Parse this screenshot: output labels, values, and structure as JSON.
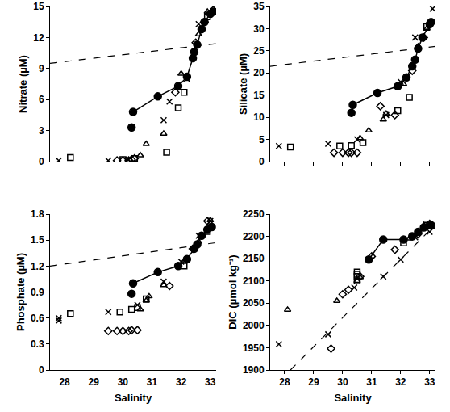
{
  "chart_data": [
    {
      "type": "scatter",
      "ylabel": "Nitrate (µM)",
      "tick_labels": "y",
      "xlim": [
        27.5,
        33.2
      ],
      "xticks": [
        28,
        29,
        30,
        31,
        32,
        33
      ],
      "ylim": [
        0,
        15
      ],
      "yticks": [
        0,
        3,
        6,
        9,
        12,
        15
      ],
      "series": [
        {
          "marker": "none",
          "line_style": "dashed",
          "color": "#000000",
          "x": [
            27.5,
            33.2
          ],
          "values": [
            9.5,
            11.4
          ]
        },
        {
          "marker": "x",
          "color": "#000000",
          "x": [
            27.8,
            29.5,
            30.2,
            31.4,
            31.6,
            32.2,
            32.6,
            33.1
          ],
          "values": [
            0.1,
            0.1,
            0.2,
            4.0,
            5.8,
            8.0,
            13.3,
            15.0
          ]
        },
        {
          "marker": "square-open",
          "color": "#000000",
          "x": [
            28.2,
            30.0,
            30.4,
            31.5,
            31.9,
            32.1,
            32.9
          ],
          "values": [
            0.4,
            0.2,
            0.3,
            0.9,
            5.2,
            6.7,
            14.0
          ]
        },
        {
          "marker": "triangle-up-open",
          "color": "#000000",
          "x": [
            30.6,
            30.8,
            31.4,
            32.0,
            32.6,
            32.9
          ],
          "values": [
            0.6,
            1.7,
            2.7,
            8.5,
            12.3,
            14.5
          ]
        },
        {
          "marker": "diamond-open",
          "color": "#000000",
          "x": [
            29.8,
            30.0,
            30.2,
            30.3,
            30.4,
            31.8,
            32.5,
            32.8
          ],
          "values": [
            0.1,
            0.1,
            0.1,
            0.2,
            0.3,
            6.7,
            11.5,
            13.5
          ]
        },
        {
          "marker": "circle",
          "color": "#000000",
          "x": [
            30.3
          ],
          "values": [
            3.3
          ]
        },
        {
          "marker": "circle",
          "line_style": "solid",
          "color": "#000000",
          "x": [
            30.35,
            31.2,
            31.9,
            32.2,
            32.4,
            32.45,
            32.55,
            32.7,
            32.8,
            33.0,
            33.1
          ],
          "values": [
            4.8,
            6.3,
            7.3,
            8.2,
            10.0,
            10.6,
            11.3,
            12.8,
            13.5,
            14.3,
            14.5
          ]
        }
      ]
    },
    {
      "type": "scatter",
      "ylabel": "Silicate (µM)",
      "tick_labels": "y",
      "xlim": [
        27.5,
        33.2
      ],
      "xticks": [
        28,
        29,
        30,
        31,
        32,
        33
      ],
      "ylim": [
        0,
        35
      ],
      "yticks": [
        0,
        5,
        10,
        15,
        20,
        25,
        30,
        35
      ],
      "series": [
        {
          "marker": "none",
          "line_style": "dashed",
          "color": "#000000",
          "x": [
            27.5,
            33.2
          ],
          "values": [
            21.5,
            26.0
          ]
        },
        {
          "marker": "x",
          "color": "#000000",
          "x": [
            27.8,
            29.5,
            30.5,
            31.5,
            32.0,
            32.5,
            33.1
          ],
          "values": [
            3.5,
            4.0,
            5.0,
            10.5,
            18.0,
            28.0,
            34.5
          ]
        },
        {
          "marker": "square-open",
          "color": "#000000",
          "x": [
            28.2,
            29.9,
            30.3,
            30.7,
            31.9,
            32.3,
            32.9
          ],
          "values": [
            3.3,
            3.5,
            3.6,
            4.3,
            11.5,
            14.5,
            30.5
          ]
        },
        {
          "marker": "triangle-up-open",
          "color": "#000000",
          "x": [
            30.6,
            30.9,
            31.4,
            31.5,
            32.1,
            32.6,
            32.9
          ],
          "values": [
            5.3,
            7.0,
            9.5,
            10.8,
            17.5,
            26.0,
            30.0
          ]
        },
        {
          "marker": "diamond-open",
          "color": "#000000",
          "x": [
            29.7,
            30.0,
            30.2,
            30.3,
            30.5,
            31.3,
            31.8,
            32.4,
            32.8
          ],
          "values": [
            2.0,
            2.0,
            2.0,
            2.0,
            2.0,
            12.5,
            10.5,
            20.5,
            28.0
          ]
        },
        {
          "marker": "circle",
          "color": "#000000",
          "x": [
            30.3
          ],
          "values": [
            11.0
          ]
        },
        {
          "marker": "circle",
          "line_style": "solid",
          "color": "#000000",
          "x": [
            30.35,
            31.2,
            31.9,
            32.2,
            32.4,
            32.5,
            32.6,
            32.75,
            33.0,
            33.05
          ],
          "values": [
            12.8,
            15.5,
            17.0,
            19.0,
            21.5,
            23.0,
            25.5,
            28.0,
            31.0,
            31.5
          ]
        }
      ]
    },
    {
      "type": "scatter",
      "ylabel": "Phosphate (µM)",
      "xlabel": "Salinity",
      "xlim": [
        27.5,
        33.2
      ],
      "xticks": [
        28,
        29,
        30,
        31,
        32,
        33
      ],
      "ylim": [
        0,
        1.8
      ],
      "yticks": [
        0,
        0.3,
        0.6,
        0.9,
        1.2,
        1.5,
        1.8
      ],
      "series": [
        {
          "marker": "none",
          "line_style": "dashed",
          "color": "#000000",
          "x": [
            27.5,
            33.2
          ],
          "values": [
            1.2,
            1.47
          ]
        },
        {
          "marker": "x",
          "color": "#000000",
          "x": [
            27.8,
            27.8,
            29.5,
            30.5,
            31.4,
            32.0,
            32.6,
            33.0
          ],
          "values": [
            0.6,
            0.57,
            0.67,
            0.75,
            1.02,
            1.25,
            1.55,
            1.72
          ]
        },
        {
          "marker": "square-open",
          "color": "#000000",
          "x": [
            28.2,
            29.9,
            30.3,
            30.5,
            30.8,
            32.1,
            32.9
          ],
          "values": [
            0.65,
            0.67,
            0.7,
            0.72,
            0.82,
            1.2,
            1.6
          ]
        },
        {
          "marker": "triangle-up-open",
          "color": "#000000",
          "x": [
            30.6,
            30.8,
            30.9,
            31.4,
            32.1,
            32.6,
            33.0
          ],
          "values": [
            0.7,
            0.8,
            0.85,
            0.98,
            1.25,
            1.48,
            1.73
          ]
        },
        {
          "marker": "diamond-open",
          "color": "#000000",
          "x": [
            29.5,
            29.8,
            30.0,
            30.2,
            30.3,
            30.5,
            31.6,
            32.4,
            32.9
          ],
          "values": [
            0.45,
            0.45,
            0.45,
            0.45,
            0.46,
            0.46,
            0.97,
            1.4,
            1.72
          ]
        },
        {
          "marker": "circle",
          "color": "#000000",
          "x": [
            30.3
          ],
          "values": [
            0.88
          ]
        },
        {
          "marker": "circle",
          "line_style": "solid",
          "color": "#000000",
          "x": [
            30.35,
            31.2,
            31.9,
            32.2,
            32.45,
            32.55,
            32.7,
            32.9,
            33.05
          ],
          "values": [
            1.0,
            1.13,
            1.2,
            1.28,
            1.4,
            1.45,
            1.55,
            1.62,
            1.65
          ]
        }
      ]
    },
    {
      "type": "scatter",
      "ylabel": "DIC (µmol kg⁻¹)",
      "xlabel": "Salinity",
      "xlim": [
        27.5,
        33.2
      ],
      "xticks": [
        28,
        29,
        30,
        31,
        32,
        33
      ],
      "ylim": [
        1900,
        2250
      ],
      "yticks": [
        1900,
        1950,
        2000,
        2050,
        2100,
        2150,
        2200,
        2250
      ],
      "series": [
        {
          "marker": "none",
          "line_style": "dashed",
          "color": "#000000",
          "x": [
            28.2,
            33.1
          ],
          "values": [
            1900,
            2220
          ]
        },
        {
          "marker": "x",
          "color": "#000000",
          "x": [
            27.8,
            29.5,
            30.4,
            31.4,
            32.0,
            32.5,
            33.0,
            33.1
          ],
          "values": [
            1958,
            1980,
            2085,
            2110,
            2148,
            2198,
            2210,
            2222
          ]
        },
        {
          "marker": "square-open",
          "color": "#000000",
          "x": [
            30.5,
            30.5,
            30.5,
            30.5,
            32.1,
            32.9
          ],
          "values": [
            2100,
            2110,
            2115,
            2120,
            2185,
            2225
          ]
        },
        {
          "marker": "triangle-up-open",
          "color": "#000000",
          "x": [
            28.1,
            29.8,
            30.5,
            30.6,
            32.3,
            32.8
          ],
          "values": [
            2035,
            2055,
            2100,
            2108,
            2195,
            2225
          ]
        },
        {
          "marker": "diamond-open",
          "color": "#000000",
          "x": [
            29.6,
            30.0,
            30.2,
            30.6,
            31.0,
            31.8,
            32.6,
            33.0
          ],
          "values": [
            1948,
            2070,
            2080,
            2110,
            2155,
            2170,
            2205,
            2228
          ]
        },
        {
          "marker": "circle",
          "line_style": "solid",
          "color": "#000000",
          "x": [
            30.9,
            31.4,
            32.1,
            32.4,
            32.6,
            32.8,
            33.05
          ],
          "values": [
            2148,
            2193,
            2193,
            2200,
            2210,
            2220,
            2225
          ]
        }
      ]
    }
  ]
}
